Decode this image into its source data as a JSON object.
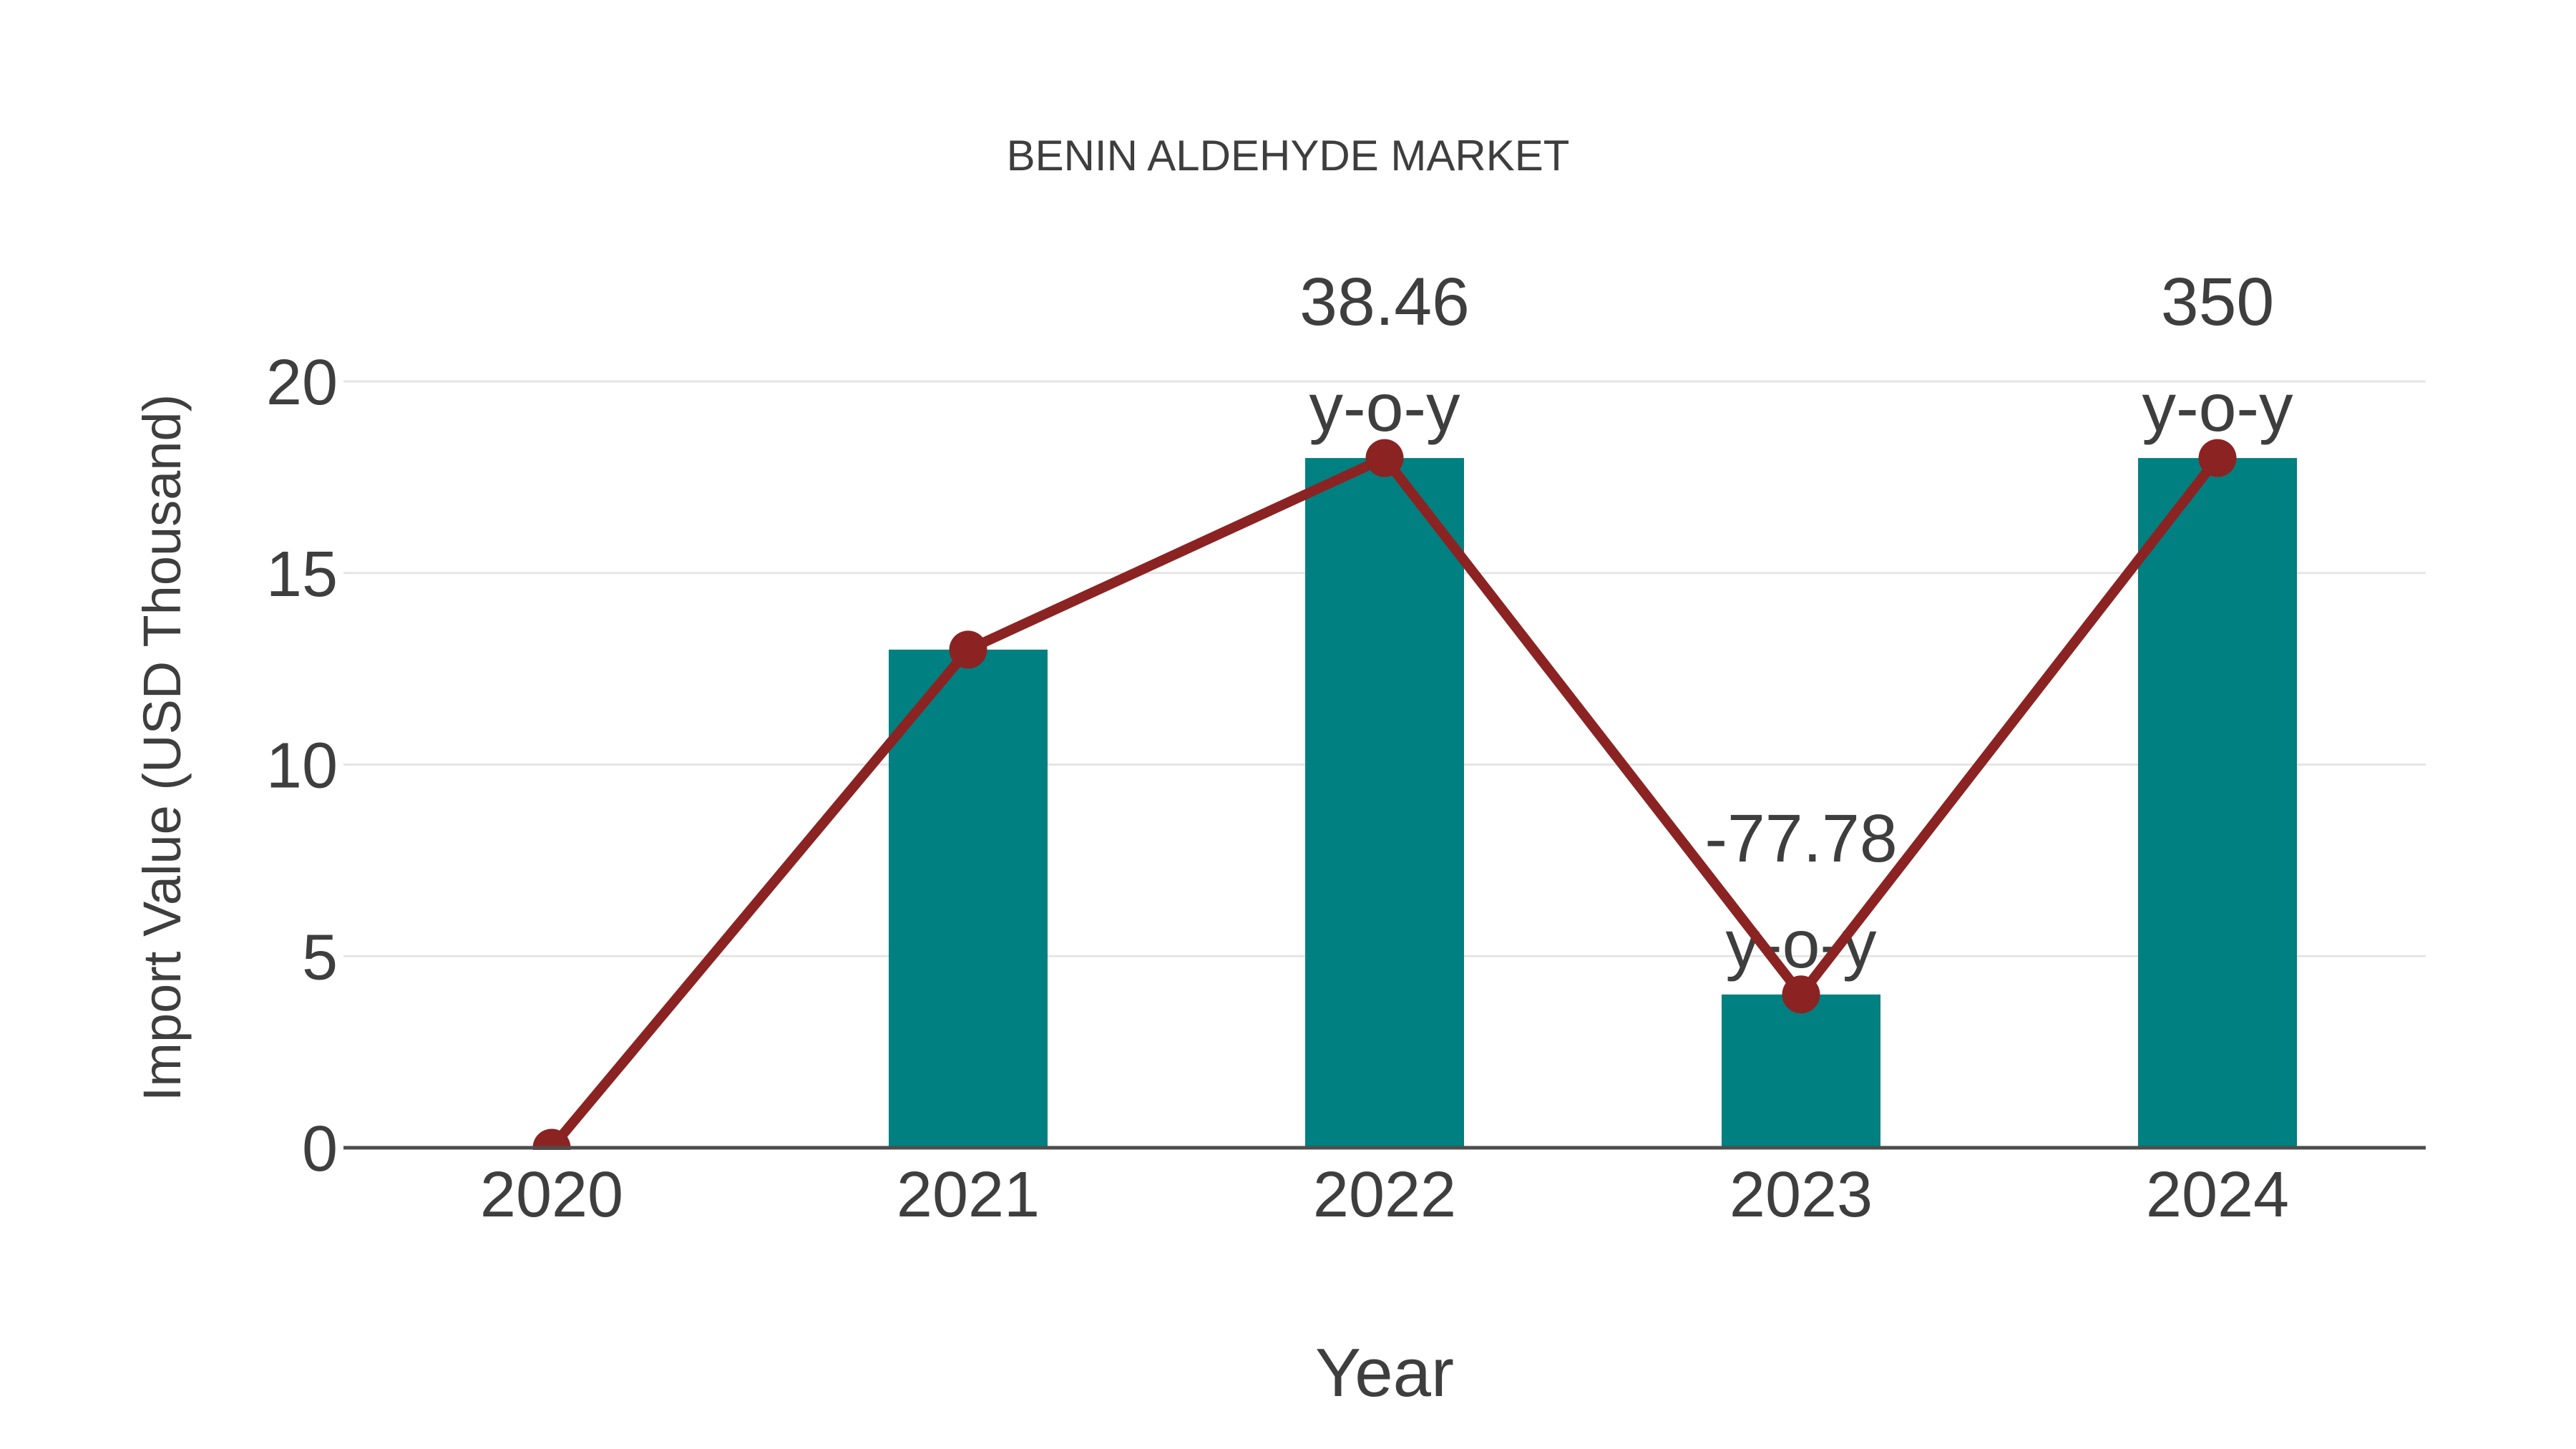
{
  "page": {
    "background": "#ffffff"
  },
  "chart_data": {
    "type": "bar",
    "title": "BENIN ALDEHYDE MARKET",
    "xlabel": "Year",
    "ylabel": "Import Value (USD Thousand)",
    "categories": [
      "2020",
      "2021",
      "2022",
      "2023",
      "2024"
    ],
    "series": [
      {
        "name": "import-value-bars",
        "type": "bar",
        "values": [
          0,
          13,
          18,
          4,
          18
        ]
      },
      {
        "name": "import-value-trend",
        "type": "line",
        "values": [
          0,
          13,
          18,
          4,
          18
        ]
      }
    ],
    "yticks": [
      0,
      5,
      10,
      15,
      20
    ],
    "ylim": [
      0,
      21.7
    ],
    "grid": "horizontal-only",
    "legend": "none",
    "annotations": [
      {
        "category": "2022",
        "lines": [
          "38.46",
          "y-o-y"
        ]
      },
      {
        "category": "2023",
        "lines": [
          "-77.78",
          "y-o-y"
        ]
      },
      {
        "category": "2024",
        "lines": [
          "350",
          "y-o-y"
        ]
      }
    ],
    "colors": {
      "bar": "#008080",
      "line": "#8b2323",
      "marker": "#8b2323",
      "grid": "#e5e5e5",
      "axis": "#4d4d4d",
      "text": "#3e3e3e"
    }
  }
}
